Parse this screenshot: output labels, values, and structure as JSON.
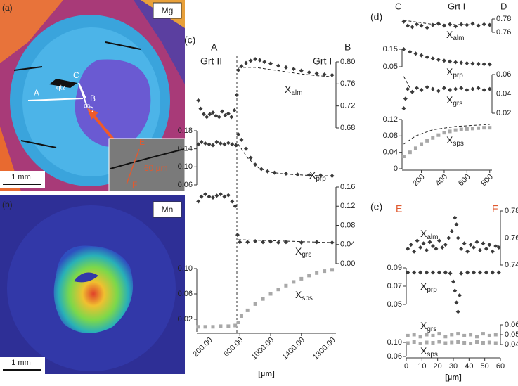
{
  "panels": {
    "a": {
      "label": "(a)",
      "element": "Mg",
      "mineral": "qtz",
      "points": [
        "A",
        "B",
        "C",
        "D"
      ],
      "scale": "1 mm",
      "inset": {
        "start": "E",
        "end": "F",
        "scale": "60 µm"
      }
    },
    "b": {
      "label": "(b)",
      "element": "Mn",
      "scale": "1 mm"
    },
    "c": {
      "label": "(c)",
      "start": "A",
      "end": "B",
      "left_zone": "Grt II",
      "right_zone": "Grt I"
    },
    "d": {
      "label": "(d)",
      "start": "C",
      "end": "D",
      "zone": "Grt I"
    },
    "e": {
      "label": "(e)",
      "start": "E",
      "end": "F"
    }
  },
  "chart_data": [
    {
      "type": "scatter",
      "label": "X",
      "label_sub": "alm",
      "color": "#3a3a3a",
      "xlim": [
        40,
        1850
      ],
      "ylim": [
        0.68,
        0.8
      ],
      "yticks": [
        0.68,
        0.72,
        0.76,
        {
          "value": 0.8,
          "label": "0.80"
        }
      ],
      "x": [
        60,
        90,
        130,
        170,
        210,
        250,
        290,
        330,
        370,
        410,
        450,
        490,
        530,
        560,
        580,
        620,
        680,
        740,
        800,
        860,
        920,
        1000,
        1100,
        1200,
        1300,
        1400,
        1500,
        1600,
        1700,
        1800
      ],
      "values": [
        0.73,
        0.715,
        0.705,
        0.7,
        0.705,
        0.708,
        0.702,
        0.7,
        0.71,
        0.703,
        0.706,
        0.7,
        0.712,
        0.74,
        0.785,
        0.792,
        0.798,
        0.802,
        0.805,
        0.803,
        0.8,
        0.797,
        0.793,
        0.79,
        0.787,
        0.784,
        0.781,
        0.779,
        0.777,
        0.776
      ],
      "model": {
        "x": [
          580,
          800,
          1000,
          1200,
          1400,
          1600,
          1800
        ],
        "values": [
          0.79,
          0.79,
          0.786,
          0.782,
          0.778,
          0.775,
          0.773
        ]
      }
    },
    {
      "type": "scatter",
      "label": "X",
      "label_sub": "prp",
      "color": "#3a3a3a",
      "xlim": [
        40,
        1850
      ],
      "ylim": [
        0.06,
        0.18
      ],
      "yticks": [
        0.06,
        {
          "value": 0.1,
          "label": "0.10"
        },
        0.14,
        0.18
      ],
      "x": [
        60,
        100,
        150,
        200,
        250,
        300,
        350,
        400,
        450,
        500,
        550,
        580,
        620,
        680,
        740,
        800,
        880,
        960,
        1050,
        1200,
        1350,
        1500,
        1650,
        1800
      ],
      "values": [
        0.15,
        0.155,
        0.152,
        0.15,
        0.148,
        0.155,
        0.152,
        0.15,
        0.153,
        0.15,
        0.148,
        0.172,
        0.16,
        0.14,
        0.12,
        0.105,
        0.095,
        0.09,
        0.087,
        0.085,
        0.083,
        0.082,
        0.081,
        0.08
      ],
      "model": {
        "x": [
          580,
          700,
          850,
          1000,
          1200,
          1500,
          1800
        ],
        "values": [
          0.15,
          0.12,
          0.097,
          0.088,
          0.084,
          0.081,
          0.08
        ]
      }
    },
    {
      "type": "scatter",
      "label": "X",
      "label_sub": "grs",
      "color": "#3a3a3a",
      "xlim": [
        40,
        1850
      ],
      "ylim": [
        0,
        0.16
      ],
      "yticks": [
        {
          "value": 0,
          "label": "0.00"
        },
        0.04,
        0.08,
        0.12,
        0.16
      ],
      "x": [
        60,
        100,
        150,
        200,
        250,
        300,
        350,
        400,
        450,
        500,
        540,
        570,
        600,
        700,
        800,
        900,
        1000,
        1100,
        1200,
        1400,
        1600,
        1800
      ],
      "values": [
        0.13,
        0.14,
        0.145,
        0.14,
        0.138,
        0.142,
        0.145,
        0.14,
        0.143,
        0.13,
        0.12,
        0.06,
        0.045,
        0.045,
        0.047,
        0.045,
        0.046,
        0.044,
        0.045,
        0.044,
        0.045,
        0.044
      ],
      "model": {
        "x": [
          580,
          1800
        ],
        "values": [
          0.05,
          0.044
        ]
      }
    },
    {
      "type": "scatter",
      "label": "X",
      "label_sub": "sps",
      "color": "#a8a8a8",
      "xlim": [
        40,
        1850
      ],
      "ylim": [
        0,
        0.1
      ],
      "yticks": [
        0.02,
        0.06,
        {
          "value": 0.1,
          "label": "0.10"
        }
      ],
      "xticks": [
        {
          "value": 200,
          "label": "200.00"
        },
        {
          "value": 600,
          "label": "600.00"
        },
        {
          "value": 1000,
          "label": "1000.00"
        },
        {
          "value": 1400,
          "label": "1400.00"
        },
        {
          "value": 1800,
          "label": "1800.00"
        }
      ],
      "xlabel": "[µm]",
      "x": [
        60,
        150,
        250,
        350,
        450,
        540,
        580,
        620,
        700,
        800,
        900,
        1000,
        1100,
        1200,
        1300,
        1400,
        1500,
        1600,
        1700,
        1800
      ],
      "values": [
        0.008,
        0.008,
        0.008,
        0.009,
        0.009,
        0.01,
        0.015,
        0.025,
        0.034,
        0.044,
        0.052,
        0.06,
        0.067,
        0.073,
        0.079,
        0.084,
        0.089,
        0.093,
        0.096,
        0.098
      ]
    },
    {
      "type": "scatter",
      "label": "X",
      "label_sub": "alm",
      "color": "#3a3a3a",
      "xlim": [
        30,
        820
      ],
      "ylim": [
        0.76,
        0.78
      ],
      "yticks": [
        0.76,
        0.78
      ],
      "x": [
        45,
        80,
        120,
        160,
        200,
        250,
        300,
        350,
        400,
        450,
        500,
        550,
        600,
        650,
        700,
        750,
        800
      ],
      "values": [
        0.776,
        0.77,
        0.768,
        0.772,
        0.77,
        0.767,
        0.771,
        0.773,
        0.77,
        0.772,
        0.769,
        0.772,
        0.771,
        0.773,
        0.77,
        0.772,
        0.771
      ],
      "model": {
        "x": [
          45,
          300,
          800
        ],
        "values": [
          0.778,
          0.772,
          0.771
        ]
      }
    },
    {
      "type": "scatter",
      "label": "X",
      "label_sub": "prp",
      "color": "#3a3a3a",
      "xlim": [
        30,
        820
      ],
      "ylim": [
        0.05,
        0.15
      ],
      "yticks": [
        0.05,
        0.15
      ],
      "x": [
        45,
        100,
        150,
        200,
        250,
        300,
        350,
        400,
        450,
        500,
        550,
        600,
        650,
        700,
        750,
        800
      ],
      "values": [
        0.15,
        0.135,
        0.125,
        0.115,
        0.105,
        0.097,
        0.09,
        0.085,
        0.08,
        0.076,
        0.073,
        0.07,
        0.068,
        0.066,
        0.065,
        0.064
      ]
    },
    {
      "type": "scatter",
      "label": "X",
      "label_sub": "grs",
      "color": "#3a3a3a",
      "xlim": [
        30,
        820
      ],
      "ylim": [
        0.02,
        0.06
      ],
      "yticks": [
        0.02,
        0.04,
        0.06
      ],
      "x": [
        45,
        60,
        80,
        120,
        160,
        200,
        250,
        300,
        350,
        400,
        450,
        500,
        550,
        600,
        650,
        700,
        750,
        800
      ],
      "values": [
        0.025,
        0.035,
        0.045,
        0.042,
        0.046,
        0.044,
        0.047,
        0.045,
        0.043,
        0.046,
        0.044,
        0.045,
        0.046,
        0.044,
        0.045,
        0.046,
        0.044,
        0.045
      ],
      "model": {
        "x": [
          45,
          100
        ],
        "values": [
          0.058,
          0.046
        ]
      }
    },
    {
      "type": "scatter",
      "label": "X",
      "label_sub": "sps",
      "color": "#a8a8a8",
      "xlim": [
        30,
        820
      ],
      "ylim": [
        0,
        0.12
      ],
      "yticks": [
        0,
        0.04,
        0.08,
        0.12
      ],
      "xticks": [
        200,
        400,
        600,
        800
      ],
      "x": [
        45,
        100,
        150,
        200,
        250,
        300,
        350,
        400,
        450,
        500,
        550,
        600,
        650,
        700,
        750,
        800
      ],
      "values": [
        0.03,
        0.04,
        0.05,
        0.06,
        0.068,
        0.075,
        0.082,
        0.088,
        0.091,
        0.094,
        0.096,
        0.097,
        0.098,
        0.099,
        0.1,
        0.1
      ],
      "model": {
        "x": [
          45,
          150,
          300,
          500,
          800
        ],
        "values": [
          0.06,
          0.08,
          0.095,
          0.103,
          0.108
        ]
      }
    },
    {
      "type": "scatter",
      "label": "X",
      "label_sub": "alm",
      "color": "#3a3a3a",
      "xlim": [
        0,
        60
      ],
      "ylim": [
        0.74,
        0.78
      ],
      "yticks": [
        0.74,
        0.76,
        0.78
      ],
      "x": [
        1,
        3,
        5,
        7,
        9,
        11,
        13,
        15,
        17,
        19,
        21,
        23,
        25,
        27,
        29,
        31,
        32,
        33,
        35,
        37,
        39,
        41,
        43,
        45,
        47,
        49,
        51,
        53,
        55,
        57,
        59
      ],
      "values": [
        0.752,
        0.755,
        0.75,
        0.758,
        0.753,
        0.756,
        0.751,
        0.757,
        0.754,
        0.752,
        0.758,
        0.753,
        0.755,
        0.76,
        0.765,
        0.775,
        0.77,
        0.76,
        0.752,
        0.756,
        0.75,
        0.755,
        0.753,
        0.757,
        0.751,
        0.756,
        0.752,
        0.755,
        0.75,
        0.754,
        0.753
      ]
    },
    {
      "type": "scatter",
      "label": "X",
      "label_sub": "prp",
      "color": "#3a3a3a",
      "xlim": [
        0,
        60
      ],
      "ylim": [
        0.05,
        0.09
      ],
      "yticks": [
        0.05,
        0.07,
        0.09
      ],
      "x": [
        1,
        5,
        9,
        13,
        17,
        21,
        25,
        28,
        30,
        31,
        32,
        33,
        34,
        35,
        39,
        43,
        47,
        51,
        55,
        59
      ],
      "values": [
        0.085,
        0.085,
        0.085,
        0.085,
        0.085,
        0.085,
        0.085,
        0.084,
        0.075,
        0.065,
        0.052,
        0.042,
        0.06,
        0.084,
        0.085,
        0.085,
        0.085,
        0.085,
        0.085,
        0.085
      ]
    },
    {
      "type": "scatter",
      "label": "X",
      "label_sub": "grs",
      "color": "#a8a8a8",
      "xlim": [
        0,
        60
      ],
      "ylim": [
        0.04,
        0.06
      ],
      "yticks": [
        0.04,
        0.05,
        0.06
      ],
      "x": [
        1,
        5,
        9,
        13,
        17,
        21,
        25,
        29,
        33,
        37,
        41,
        45,
        49,
        53,
        57
      ],
      "values": [
        0.049,
        0.05,
        0.048,
        0.05,
        0.049,
        0.051,
        0.048,
        0.05,
        0.051,
        0.049,
        0.05,
        0.048,
        0.051,
        0.049,
        0.05
      ]
    },
    {
      "type": "scatter",
      "label": "X",
      "label_sub": "sps",
      "color": "#a8a8a8",
      "xlim": [
        0,
        60
      ],
      "ylim": [
        0.06,
        0.1
      ],
      "yticks": [
        0.06,
        {
          "value": 0.1,
          "label": "0.10"
        }
      ],
      "xticks": [
        0,
        10,
        20,
        30,
        40,
        50,
        60
      ],
      "xlabel": "[µm]",
      "x": [
        1,
        5,
        9,
        13,
        17,
        21,
        25,
        29,
        33,
        37,
        41,
        45,
        49,
        53,
        57
      ],
      "values": [
        0.098,
        0.101,
        0.097,
        0.1,
        0.099,
        0.102,
        0.098,
        0.1,
        0.101,
        0.099,
        0.097,
        0.101,
        0.099,
        0.1,
        0.098
      ]
    }
  ]
}
